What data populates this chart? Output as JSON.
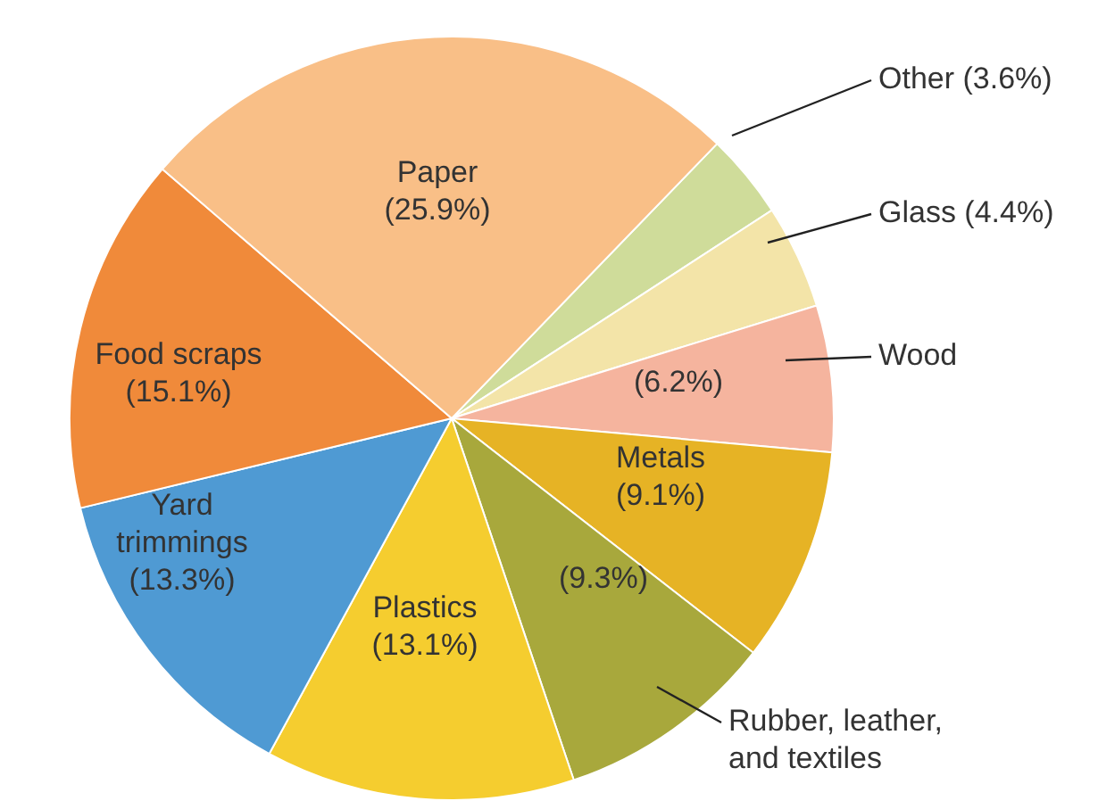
{
  "chart_data": {
    "type": "pie",
    "categories": [
      "Other",
      "Glass",
      "Wood",
      "Metals",
      "Rubber, leather, and textiles",
      "Plastics",
      "Yard trimmings",
      "Food scraps",
      "Paper"
    ],
    "values": [
      3.6,
      4.4,
      6.2,
      9.1,
      9.3,
      13.1,
      13.3,
      15.1,
      25.9
    ],
    "value_labels": [
      "(3.6%)",
      "(4.4%)",
      "(6.2%)",
      "(9.1%)",
      "(9.3%)",
      "(13.1%)",
      "(13.3%)",
      "(15.1%)",
      "(25.9%)"
    ],
    "colors": [
      "#cfdc9a",
      "#f3e4a8",
      "#f5b49e",
      "#e6b325",
      "#a8a83c",
      "#f5cd2f",
      "#4f9ad3",
      "#f08a3a",
      "#f9bf87"
    ],
    "legend": false
  }
}
